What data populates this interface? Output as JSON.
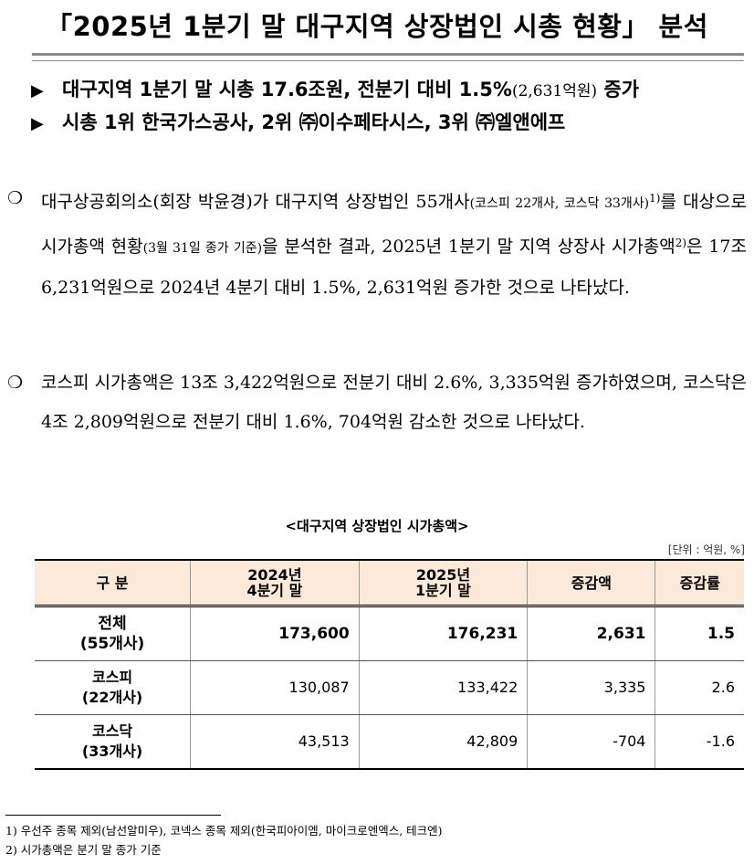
{
  "title": "「2025년 1분기 말 대구지역 상장법인 시총 현황」 분석",
  "highlights": [
    [
      {
        "text": "대구지역 1분기 말 시총 17.6조원, 전분기 대비 1.5%",
        "kind": "normal"
      },
      {
        "text": "(2,631억원)",
        "kind": "small"
      },
      {
        "text": " 증가",
        "kind": "normal"
      }
    ],
    [
      {
        "text": "시총 1위 한국가스공사, 2위 ㈜이수페타시스, 3위 ㈜엘앤에프",
        "kind": "normal"
      }
    ]
  ],
  "paragraphs": [
    [
      {
        "text": "대구상공회의소(회장 박윤경)가 대구지역 상장법인 55개사",
        "kind": "normal"
      },
      {
        "text": "(코스피 22개사, 코스닥 33개사)",
        "kind": "small"
      },
      {
        "text": "1)",
        "kind": "sup"
      },
      {
        "text": "를 대상으로 시가총액 현황",
        "kind": "normal"
      },
      {
        "text": "(3월 31일 종가 기준)",
        "kind": "small"
      },
      {
        "text": "을 분석한 결과, 2025년 1분기 말 지역 상장사 시가총액",
        "kind": "normal"
      },
      {
        "text": "2)",
        "kind": "sup"
      },
      {
        "text": "은 17조 6,231억원으로 2024년 4분기 대비 1.5%, 2,631억원 증가한 것으로 나타났다.",
        "kind": "normal"
      }
    ],
    [
      {
        "text": "코스피 시가총액은 13조 3,422억원으로 전분기 대비 2.6%, 3,335억원 증가하였으며, 코스닥은 4조 2,809억원으로 전분기 대비 1.6%, 704억원 감소한 것으로 나타났다.",
        "kind": "normal"
      }
    ]
  ],
  "table": {
    "caption": "<대구지역 상장법인 시가총액>",
    "unit": "[단위 : 억원, %]",
    "header": [
      "구    분",
      "2024년\n4분기 말",
      "2025년\n1분기 말",
      "증감액",
      "증감률"
    ],
    "rows": [
      [
        "전체\n(55개사)",
        "173,600",
        "176,231",
        "2,631",
        "1.5"
      ],
      [
        "코스피\n(22개사)",
        "130,087",
        "133,422",
        "3,335",
        "2.6"
      ],
      [
        "코스닥\n(33개사)",
        "43,513",
        "42,809",
        "-704",
        "-1.6"
      ]
    ]
  },
  "footnotes": [
    "1) 우선주 종목 제외(남선알미우), 코넥스 종목 제외(한국피아이엠, 마이크로엔엑스, 테크엔)",
    "2) 시가총액은 분기 말 종가 기준"
  ]
}
